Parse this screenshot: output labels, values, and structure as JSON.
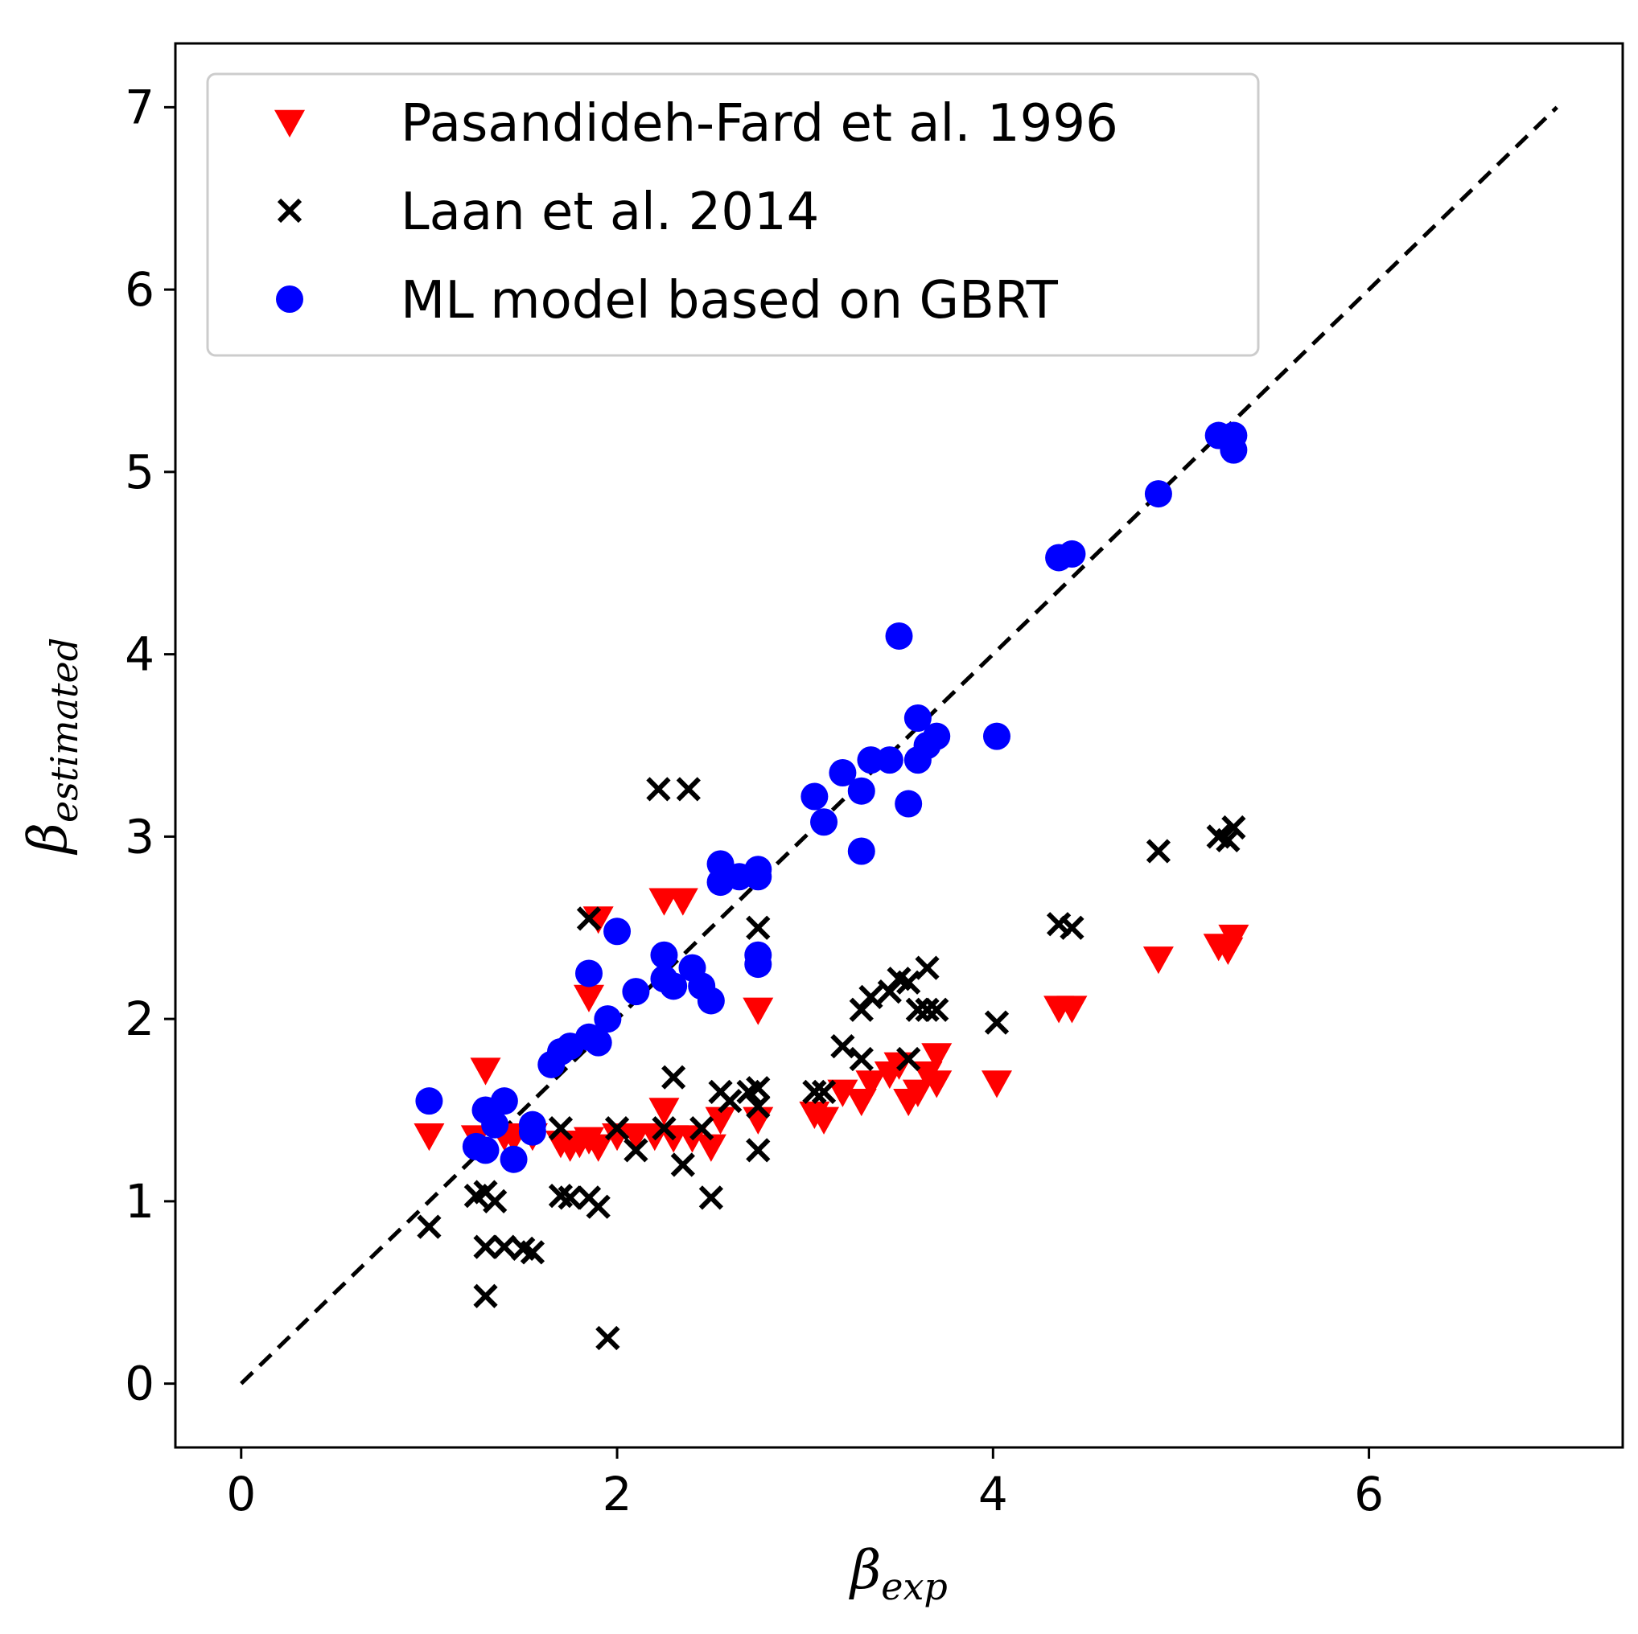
{
  "chart_data": {
    "type": "scatter",
    "title": "",
    "xlabel": {
      "symbol": "β",
      "subscript": "exp"
    },
    "ylabel": {
      "symbol": "β",
      "subscript": "estimated"
    },
    "xlim": [
      -0.35,
      7.35
    ],
    "ylim": [
      -0.35,
      7.35
    ],
    "xticks": [
      0,
      2,
      4,
      6
    ],
    "yticks": [
      0,
      1,
      2,
      3,
      4,
      5,
      6,
      7
    ],
    "grid": false,
    "legend_position": "upper-left",
    "reference_line": {
      "style": "dashed",
      "color": "#000000",
      "from": [
        0,
        0
      ],
      "to": [
        7,
        7
      ]
    },
    "series": [
      {
        "name": "Pasandideh-Fard et al. 1996",
        "marker": "triangle-down",
        "color": "#ff0000",
        "points": [
          [
            1.0,
            1.36
          ],
          [
            1.25,
            1.35
          ],
          [
            1.3,
            1.72
          ],
          [
            1.4,
            1.36
          ],
          [
            1.45,
            1.35
          ],
          [
            1.55,
            1.36
          ],
          [
            1.7,
            1.32
          ],
          [
            1.75,
            1.3
          ],
          [
            1.8,
            1.32
          ],
          [
            1.85,
            1.34
          ],
          [
            1.9,
            1.3
          ],
          [
            1.85,
            2.12
          ],
          [
            1.9,
            2.55
          ],
          [
            2.0,
            1.36
          ],
          [
            2.1,
            1.36
          ],
          [
            2.2,
            1.36
          ],
          [
            2.25,
            1.5
          ],
          [
            2.3,
            1.35
          ],
          [
            2.4,
            1.35
          ],
          [
            2.5,
            1.3
          ],
          [
            2.55,
            1.45
          ],
          [
            2.25,
            2.65
          ],
          [
            2.35,
            2.65
          ],
          [
            2.75,
            2.05
          ],
          [
            2.75,
            1.45
          ],
          [
            3.05,
            1.48
          ],
          [
            3.1,
            1.45
          ],
          [
            3.2,
            1.6
          ],
          [
            3.3,
            1.55
          ],
          [
            3.35,
            1.65
          ],
          [
            3.45,
            1.7
          ],
          [
            3.5,
            1.75
          ],
          [
            3.55,
            1.55
          ],
          [
            3.6,
            1.6
          ],
          [
            3.65,
            1.7
          ],
          [
            3.7,
            1.65
          ],
          [
            3.7,
            1.8
          ],
          [
            4.02,
            1.65
          ],
          [
            4.35,
            2.06
          ],
          [
            4.42,
            2.06
          ],
          [
            4.88,
            2.33
          ],
          [
            5.2,
            2.4
          ],
          [
            5.25,
            2.38
          ],
          [
            5.28,
            2.45
          ]
        ]
      },
      {
        "name": "Laan et al. 2014",
        "marker": "x",
        "color": "#000000",
        "points": [
          [
            1.0,
            0.86
          ],
          [
            1.25,
            1.03
          ],
          [
            1.3,
            1.05
          ],
          [
            1.35,
            1.0
          ],
          [
            1.3,
            0.75
          ],
          [
            1.4,
            0.75
          ],
          [
            1.5,
            0.74
          ],
          [
            1.55,
            0.72
          ],
          [
            1.3,
            0.48
          ],
          [
            1.7,
            1.4
          ],
          [
            1.7,
            1.03
          ],
          [
            1.75,
            1.02
          ],
          [
            1.85,
            1.02
          ],
          [
            1.9,
            0.97
          ],
          [
            1.85,
            2.55
          ],
          [
            1.95,
            0.25
          ],
          [
            2.0,
            1.4
          ],
          [
            2.1,
            1.28
          ],
          [
            2.25,
            1.4
          ],
          [
            2.3,
            1.68
          ],
          [
            2.35,
            1.2
          ],
          [
            2.45,
            1.4
          ],
          [
            2.5,
            1.02
          ],
          [
            2.55,
            1.6
          ],
          [
            2.6,
            1.55
          ],
          [
            2.7,
            1.6
          ],
          [
            2.75,
            1.62
          ],
          [
            2.75,
            1.52
          ],
          [
            2.75,
            1.28
          ],
          [
            2.75,
            2.5
          ],
          [
            2.22,
            3.26
          ],
          [
            2.38,
            3.26
          ],
          [
            3.05,
            1.6
          ],
          [
            3.1,
            1.6
          ],
          [
            3.2,
            1.85
          ],
          [
            3.3,
            2.05
          ],
          [
            3.3,
            1.78
          ],
          [
            3.35,
            2.12
          ],
          [
            3.45,
            2.15
          ],
          [
            3.5,
            2.22
          ],
          [
            3.55,
            2.2
          ],
          [
            3.55,
            1.78
          ],
          [
            3.6,
            2.05
          ],
          [
            3.65,
            2.28
          ],
          [
            3.65,
            2.05
          ],
          [
            3.7,
            2.05
          ],
          [
            4.02,
            1.98
          ],
          [
            4.35,
            2.52
          ],
          [
            4.42,
            2.5
          ],
          [
            4.88,
            2.92
          ],
          [
            5.2,
            3.0
          ],
          [
            5.25,
            2.98
          ],
          [
            5.28,
            3.05
          ]
        ]
      },
      {
        "name": "ML model based on GBRT",
        "marker": "circle",
        "color": "#0000ff",
        "points": [
          [
            1.0,
            1.55
          ],
          [
            1.3,
            1.5
          ],
          [
            1.35,
            1.42
          ],
          [
            1.4,
            1.55
          ],
          [
            1.25,
            1.3
          ],
          [
            1.3,
            1.28
          ],
          [
            1.45,
            1.23
          ],
          [
            1.55,
            1.42
          ],
          [
            1.55,
            1.38
          ],
          [
            1.65,
            1.75
          ],
          [
            1.7,
            1.82
          ],
          [
            1.75,
            1.85
          ],
          [
            1.85,
            1.9
          ],
          [
            1.9,
            1.87
          ],
          [
            1.95,
            2.0
          ],
          [
            1.85,
            2.25
          ],
          [
            2.0,
            2.48
          ],
          [
            2.1,
            2.15
          ],
          [
            2.25,
            2.35
          ],
          [
            2.25,
            2.22
          ],
          [
            2.3,
            2.18
          ],
          [
            2.4,
            2.28
          ],
          [
            2.45,
            2.18
          ],
          [
            2.5,
            2.1
          ],
          [
            2.55,
            2.85
          ],
          [
            2.55,
            2.75
          ],
          [
            2.65,
            2.78
          ],
          [
            2.75,
            2.82
          ],
          [
            2.75,
            2.78
          ],
          [
            2.75,
            2.35
          ],
          [
            2.75,
            2.3
          ],
          [
            3.05,
            3.22
          ],
          [
            3.1,
            3.08
          ],
          [
            3.2,
            3.35
          ],
          [
            3.3,
            3.25
          ],
          [
            3.35,
            3.42
          ],
          [
            3.3,
            2.92
          ],
          [
            3.45,
            3.42
          ],
          [
            3.5,
            4.1
          ],
          [
            3.55,
            3.18
          ],
          [
            3.6,
            3.65
          ],
          [
            3.6,
            3.42
          ],
          [
            3.65,
            3.5
          ],
          [
            3.7,
            3.55
          ],
          [
            4.02,
            3.55
          ],
          [
            4.35,
            4.53
          ],
          [
            4.42,
            4.55
          ],
          [
            4.88,
            4.88
          ],
          [
            5.2,
            5.2
          ],
          [
            5.28,
            5.2
          ],
          [
            5.28,
            5.12
          ]
        ]
      }
    ]
  }
}
